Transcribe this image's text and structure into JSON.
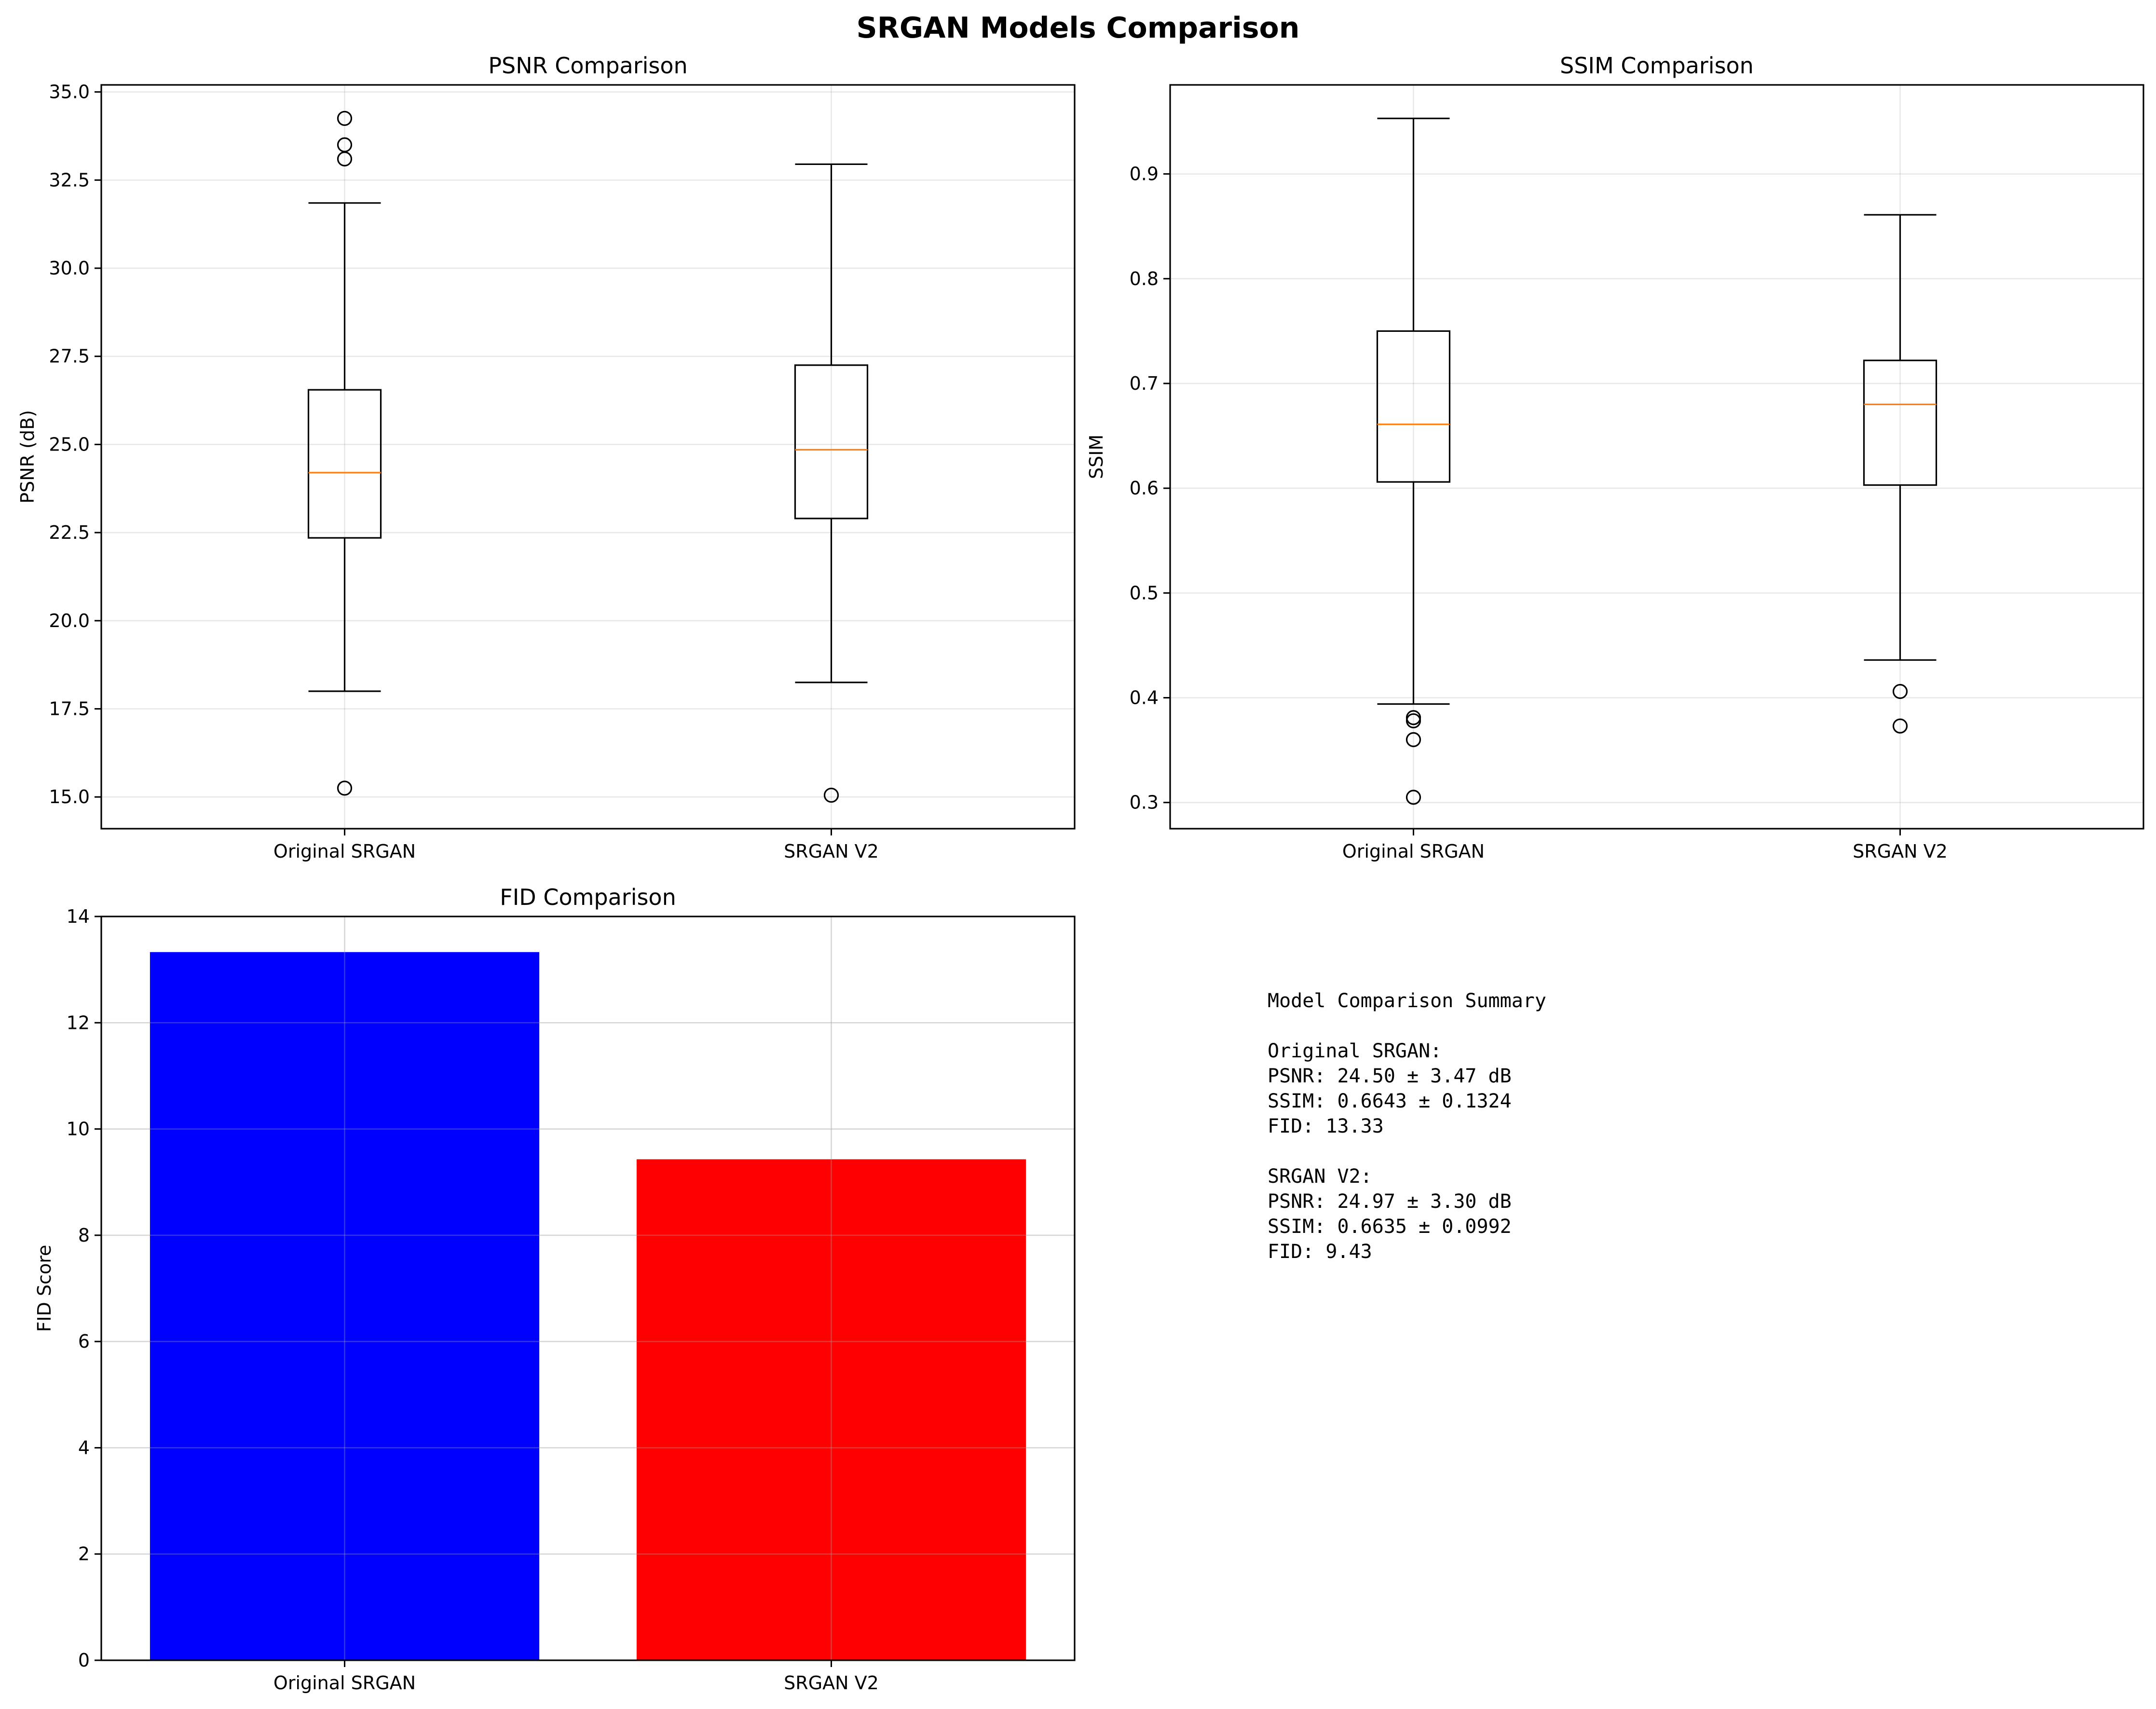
{
  "title": "SRGAN Models Comparison",
  "chart_data": [
    {
      "type": "box",
      "title": "PSNR Comparison",
      "xlabel": "",
      "ylabel": "PSNR (dB)",
      "categories": [
        "Original SRGAN",
        "SRGAN V2"
      ],
      "ylim": [
        14.1,
        35.2
      ],
      "yticks": [
        15.0,
        17.5,
        20.0,
        22.5,
        25.0,
        27.5,
        30.0,
        32.5,
        35.0
      ],
      "ytick_labels": [
        "15.0",
        "17.5",
        "20.0",
        "22.5",
        "25.0",
        "27.5",
        "30.0",
        "32.5",
        "35.0"
      ],
      "grid": true,
      "boxes": [
        {
          "whisker_low": 18.0,
          "q1": 22.35,
          "median": 24.2,
          "q3": 26.55,
          "whisker_high": 31.85,
          "outliers": [
            15.25,
            33.1,
            33.5,
            34.25
          ]
        },
        {
          "whisker_low": 18.25,
          "q1": 22.9,
          "median": 24.85,
          "q3": 27.25,
          "whisker_high": 32.95,
          "outliers": [
            15.05
          ]
        }
      ],
      "box_color": "#000000",
      "median_color": "#ff7f0e"
    },
    {
      "type": "box",
      "title": "SSIM Comparison",
      "xlabel": "",
      "ylabel": "SSIM",
      "categories": [
        "Original SRGAN",
        "SRGAN V2"
      ],
      "ylim": [
        0.275,
        0.985
      ],
      "yticks": [
        0.3,
        0.4,
        0.5,
        0.6,
        0.7,
        0.8,
        0.9
      ],
      "ytick_labels": [
        "0.3",
        "0.4",
        "0.5",
        "0.6",
        "0.7",
        "0.8",
        "0.9"
      ],
      "grid": true,
      "boxes": [
        {
          "whisker_low": 0.394,
          "q1": 0.606,
          "median": 0.661,
          "q3": 0.75,
          "whisker_high": 0.953,
          "outliers": [
            0.305,
            0.36,
            0.378,
            0.381
          ]
        },
        {
          "whisker_low": 0.436,
          "q1": 0.603,
          "median": 0.68,
          "q3": 0.722,
          "whisker_high": 0.861,
          "outliers": [
            0.373,
            0.406
          ]
        }
      ],
      "box_color": "#000000",
      "median_color": "#ff7f0e"
    },
    {
      "type": "bar",
      "title": "FID Comparison",
      "xlabel": "",
      "ylabel": "FID Score",
      "categories": [
        "Original SRGAN",
        "SRGAN V2"
      ],
      "values": [
        13.33,
        9.43
      ],
      "colors": [
        "#0000ff",
        "#ff0000"
      ],
      "ylim": [
        0,
        14
      ],
      "yticks": [
        0,
        2,
        4,
        6,
        8,
        10,
        12,
        14
      ],
      "ytick_labels": [
        "0",
        "2",
        "4",
        "6",
        "8",
        "10",
        "12",
        "14"
      ],
      "grid": true
    }
  ],
  "summary": {
    "lines": [
      "Model Comparison Summary",
      "",
      "Original SRGAN:",
      "  PSNR: 24.50 ± 3.47 dB",
      "  SSIM: 0.6643 ± 0.1324",
      "  FID: 13.33",
      "",
      "SRGAN V2:",
      "  PSNR: 24.97 ± 3.30 dB",
      "  SSIM: 0.6635 ± 0.0992",
      "  FID: 9.43"
    ]
  }
}
